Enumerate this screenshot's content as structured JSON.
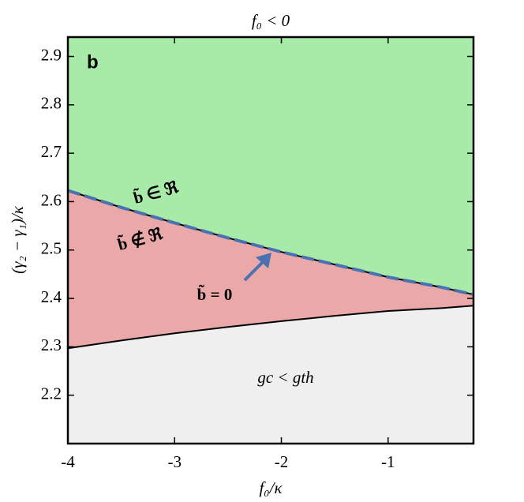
{
  "chart_data": {
    "type": "region",
    "title": "f₀ < 0",
    "x_label": "f₀/κ",
    "y_label": "(γ₂ − γ₁)/κ",
    "panel_label": "b",
    "x": [
      -4,
      -3.5,
      -3,
      -2.5,
      -2,
      -1.5,
      -1,
      -0.5,
      -0.2
    ],
    "series": [
      {
        "values": [
          2.623,
          2.588,
          2.556,
          2.525,
          2.496,
          2.47,
          2.444,
          2.423,
          2.408
        ],
        "color": "#4a72b0",
        "dashed": true
      },
      {
        "values": [
          2.297,
          2.313,
          2.328,
          2.341,
          2.353,
          2.364,
          2.374,
          2.38,
          2.385
        ],
        "color": "#000000",
        "dashed": false
      }
    ],
    "region_colors": [
      "#a8eba8",
      "#eba8a8",
      "#efefef"
    ],
    "annotations": [
      "b̃ ∈ ℜ",
      "b̃ ∉ ℜ",
      "b̃ = 0",
      "gc < gth"
    ],
    "annotation_color": "#4a72b0",
    "xlim": [
      -4,
      -0.2
    ],
    "ylim": [
      2.1,
      2.94
    ],
    "xticks": [
      -4,
      -3,
      -2,
      -1
    ],
    "yticks": [
      2.2,
      2.3,
      2.4,
      2.5,
      2.6,
      2.7,
      2.8,
      2.9
    ]
  }
}
